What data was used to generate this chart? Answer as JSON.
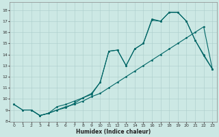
{
  "xlabel": "Humidex (Indice chaleur)",
  "bg_color": "#cce8e4",
  "grid_color": "#aaccca",
  "line_color": "#006666",
  "xlim": [
    -0.5,
    23.5
  ],
  "ylim": [
    7.9,
    18.7
  ],
  "xticks": [
    0,
    1,
    2,
    3,
    4,
    5,
    6,
    7,
    8,
    9,
    10,
    11,
    12,
    13,
    14,
    15,
    16,
    17,
    18,
    19,
    20,
    21,
    22,
    23
  ],
  "yticks": [
    8,
    9,
    10,
    11,
    12,
    13,
    14,
    15,
    16,
    17,
    18
  ],
  "line1_x": [
    0,
    1,
    2,
    3,
    4,
    5,
    6,
    7,
    8,
    9,
    10,
    11,
    12,
    13,
    14,
    15,
    16,
    17,
    18,
    19,
    20,
    21,
    22,
    23
  ],
  "line1_y": [
    9.5,
    9.0,
    9.0,
    8.5,
    8.7,
    9.0,
    9.3,
    9.5,
    9.8,
    10.2,
    10.5,
    11.0,
    11.5,
    12.0,
    12.5,
    13.0,
    13.5,
    14.0,
    14.5,
    15.0,
    15.5,
    16.0,
    16.5,
    12.7
  ],
  "line2_x": [
    2,
    3,
    4,
    5,
    6,
    7,
    8,
    9,
    10,
    11,
    12,
    13,
    14,
    15,
    16,
    17,
    18,
    19,
    20,
    21,
    22,
    23
  ],
  "line2_y": [
    9.0,
    8.5,
    8.7,
    9.0,
    9.2,
    9.6,
    10.1,
    10.4,
    11.5,
    14.3,
    14.4,
    13.0,
    14.5,
    15.0,
    17.1,
    17.0,
    17.8,
    17.8,
    17.0,
    15.3,
    14.0,
    12.7
  ],
  "line3_x": [
    0,
    1,
    2,
    3,
    4,
    5,
    6,
    7,
    8,
    9,
    10,
    11,
    12,
    13,
    14,
    15,
    16,
    17,
    18,
    19,
    20,
    21,
    22,
    23
  ],
  "line3_y": [
    9.5,
    9.0,
    9.0,
    8.5,
    8.7,
    9.3,
    9.5,
    9.8,
    10.1,
    10.5,
    11.5,
    14.3,
    14.4,
    13.0,
    14.5,
    15.0,
    17.2,
    17.0,
    17.8,
    17.8,
    17.0,
    15.3,
    13.9,
    12.7
  ]
}
